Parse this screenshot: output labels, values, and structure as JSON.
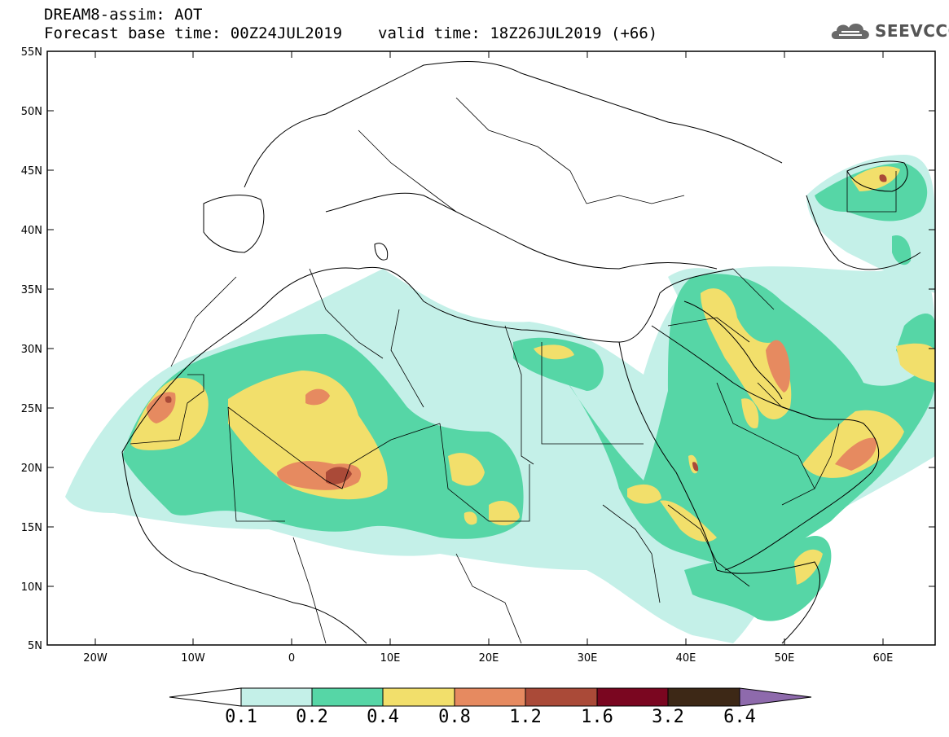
{
  "header": {
    "line1": "DREAM8-assim: AOT",
    "base_time": "Forecast base time: 00Z24JUL2019",
    "valid_time": "valid time: 18Z26JUL2019 (+66)"
  },
  "logo": {
    "text": "SEEVCCC",
    "icon": "cloud-icon"
  },
  "map": {
    "lon_range": [
      -25,
      65
    ],
    "lat_range": [
      5,
      55
    ],
    "lat_labels": [
      "55N",
      "50N",
      "45N",
      "40N",
      "35N",
      "30N",
      "25N",
      "20N",
      "15N",
      "10N",
      "5N"
    ],
    "lon_labels": [
      "20W",
      "10W",
      "0",
      "10E",
      "20E",
      "30E",
      "40E",
      "50E",
      "60E"
    ],
    "region": "North Africa and Middle East"
  },
  "colorbar": {
    "labels": [
      "0.1",
      "0.2",
      "0.4",
      "0.8",
      "1.2",
      "1.6",
      "3.2",
      "6.4"
    ],
    "colors": [
      "#ffffff",
      "#c4f0e8",
      "#56d6a6",
      "#f2df6b",
      "#e68a60",
      "#aa4a38",
      "#7a0620",
      "#3d2816",
      "#8e6aac"
    ]
  }
}
